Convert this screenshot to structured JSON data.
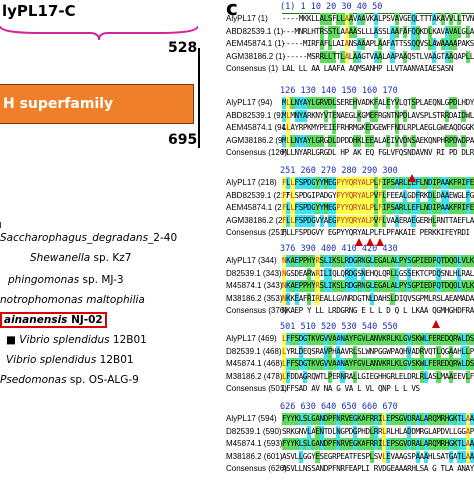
{
  "left_panel": {
    "domain_title": "lyPL17-C",
    "num_528": "528",
    "num_695": "695",
    "superfamily_label": "H superfamily",
    "species": [
      {
        "italic": "Saccharophagus_degradans",
        "rest": "_2-40"
      },
      {
        "italic": "Shewanella",
        "rest": " sp. Kz7"
      },
      {
        "italic": "phingomonas",
        "rest": " sp. MJ-3"
      },
      {
        "italic": "notrophomonas maltophilia",
        "rest": ""
      },
      {
        "italic": "ainanensis",
        "rest": " NJ-02"
      },
      {
        "italic": "Vibrio splendidus",
        "rest": " 12B01"
      },
      {
        "italic": "Vibrio splendidus",
        "rest": " 12B01"
      },
      {
        "italic": "Psedomonas",
        "rest": " sp. OS-ALG-9"
      }
    ]
  },
  "right_panel": {
    "panel_letter": "c",
    "colors": {
      "yellow": "#ffff4d",
      "cyan": "#3fe0f0",
      "green": "#5fdc5f",
      "none": "#ffffff"
    },
    "blocks": [
      {
        "ruler": "(1) 1     10        20        30        40        50",
        "rows": [
          {
            "label": "AlyPL17 (1)",
            "seq": "----MKKLLALSFLLAAVAAVKALPSVAVGEQLTTTAKAVVLLTVNQLVSGA"
          },
          {
            "label": "ABD82539.1 (1)",
            "seq": "---MNRLHTRSSTLAAAASLLLASSLAAFAFQQKDLKAVAVALGLAPHRYP"
          },
          {
            "label": "AEM45874.1 (1)",
            "seq": "-----MIRFAFLLAIANSAAAPLAAFATTSSQQVSLAWAAAAPAKSGTEAK"
          },
          {
            "label": "AGM38186.2 (1)",
            "seq": "------MSRRLLTTLALAAGTVAALAAPAAQSTLVAAGTAAQAPLLEVAAAP"
          },
          {
            "label": "Consensus (1)",
            "seq": "      LAL    LL  AA LAAFA AQMSANHP LLVTAANVAIAESASN"
          }
        ]
      },
      {
        "ruler": "126    130       140       150       160       170",
        "rows": [
          {
            "label": "AlyPL17 (94)",
            "seq": "MLLNYAYLGRVDLSEREHVADKFALEYVLQTSPLAEQNLGPDLHDYYAVASDG"
          },
          {
            "label": "ABD82539.1 (92)",
            "seq": "MLMNYARKNYVTENAEGLKGMEFRGNTNPDLAVSPLSTRRDAIDWLWDHKK"
          },
          {
            "label": "AEM45874.1 (94)",
            "seq": "LLAYRPKMYPEIEFRHRMGKEDGEWFFNDLRPLAEGLGWEAQDGGKLWYRVSE"
          },
          {
            "label": "AGM38186.2 (90)",
            "seq": "MLLNYAYLGRGDLDPDDHKLEEALAEIVVDNSAEKQNPHRPDWDPALRLAGEG"
          },
          {
            "label": "Consensus (126)",
            "seq": "MLLNYARLGRGDL HP AK EQ  FGLVFQSNDAVNV RI PD DLRFG DG"
          }
        ]
      },
      {
        "ruler": "251    260       270       280       290       300",
        "rows": [
          {
            "label": "AlyPL17 (218)",
            "seq": "FLLFSPDGYYMEGPYYQRYALPLFIPSARLLEFLNDIPAAKFRIFEYRDIAKFVDA"
          },
          {
            "label": "ABD82539.1 (217)",
            "seq": "FFLSPDGIPADGYPYYQRYALPVFLFEEALGDFRKDLDAAEWGLFGRRDFSLVA"
          },
          {
            "label": "AEM45874.1 (218)",
            "seq": "FLLFSPDGYYMEGPYYQRYALPLFIPSARLLEFLNDIPAAKFRIFEYRDIAKFVD"
          },
          {
            "label": "AGM38186.2 (218)",
            "seq": "FLLFSPDGVYAEGPYYQRYALPVFLVAAERAEGERHLRNTTAEFLAADLAPSKL"
          },
          {
            "label": "Consensus (251)",
            "seq": "FLLFSPDGVY EGPYYQRYALPLFLPFAKAIE  PERKKIFEYRDI LMLNA"
          }
        ]
      },
      {
        "ruler": "376    390          400          410          420     430",
        "rows": [
          {
            "label": "AlyPL17 (344)",
            "seq": "NKAEPPHYRSLIKSLRDGRNGLEGALALPYSGPIEDPQTDQOLVLKAASAQGMHGHDFRANYH"
          },
          {
            "label": "D82539.1 (343)",
            "seq": "NGSDEARWRILIQLQRDGSNEHQLQRLLGSSEKTCPDQSNLHLRALNSRPGMHGHRFRAAR"
          },
          {
            "label": "M45874.1 (343)",
            "seq": "NKAEPPHYRSLIKSLRDGRNGLEGALALPYSGPIEDPQTDQOLVLKAASAQGMHGHDFRANY"
          },
          {
            "label": "M38186.2 (353)",
            "seq": "NKKEAFRIREALLGVNRDGTNLDAHSLDIQVSGPMLRSLAEAMADAGATANGMHGHDFRAQY"
          },
          {
            "label": "Consensus (376)",
            "seq": "NKAEP  Y  LL  LRDGRNG E  L L        D Q  L LKAA   QGMHGHDFRANY"
          }
        ]
      },
      {
        "ruler": "501    510       520       530       540       550",
        "rows": [
          {
            "label": "AlyPL17 (469)",
            "seq": "LFFSDGTKVGVVAANAYFGVLANVKRLKLGVSKWLFEREDQRWLDSRVATCFSLVVTNA"
          },
          {
            "label": "D82539.1 (468)",
            "seq": "LYRLDEQSRAVPHAAVRLSLWNPGGWPAQHVADRVQTLQGAAHLLPELAPRKEVLGSL"
          },
          {
            "label": "M45874.1 (468)",
            "seq": "LFFSDGTKVGVVAANAYFGVLANVKRLKLGVSKWLFEREDQRWLDSRVATCFSLVVTN"
          },
          {
            "label": "M38186.2 (478)",
            "seq": "LFDDAGRQWTLPERNRALLGIEGHHGRLELDRLRLASLMAAEEVLFVSQNPRHEYLAVS"
          },
          {
            "label": "Consensus (501)",
            "seq": "LFFSAD    AV   NA  G VA        L      VL  QNP  L   L VS"
          }
        ]
      },
      {
        "ruler": "626    630       640       650       660       670",
        "rows": [
          {
            "label": "AlyPL17 (594)",
            "seq": "FYYKLSLGANDPFNRVEGKAFRRILEPSGVDRALARQMRHGKTLAAIANAYAAI"
          },
          {
            "label": "D82539.1 (590)",
            "seq": "SRKGNVLAENTDLNGPDGPHDLRRLRLHLADDMRGLAPDVLLGGAPSHVARLSV"
          },
          {
            "label": "M45874.1 (593)",
            "seq": "FYYKLSLGANDPFNRVEGKAFRRILEPSGVDRALARQMRHGKTLAAIANAYAAI"
          },
          {
            "label": "M38186.2 (601)",
            "seq": "ASVLLGGYESEGRPEATFESPLSVLEVAAGSPAAAHLSATGATLAARSRAIVHF"
          },
          {
            "label": "Consensus (626)",
            "seq": "ASVLLNSSANDPFNRFEAPLI  RVDGEAAARHLSA G  TLA  ANAY AI"
          }
        ]
      }
    ]
  }
}
